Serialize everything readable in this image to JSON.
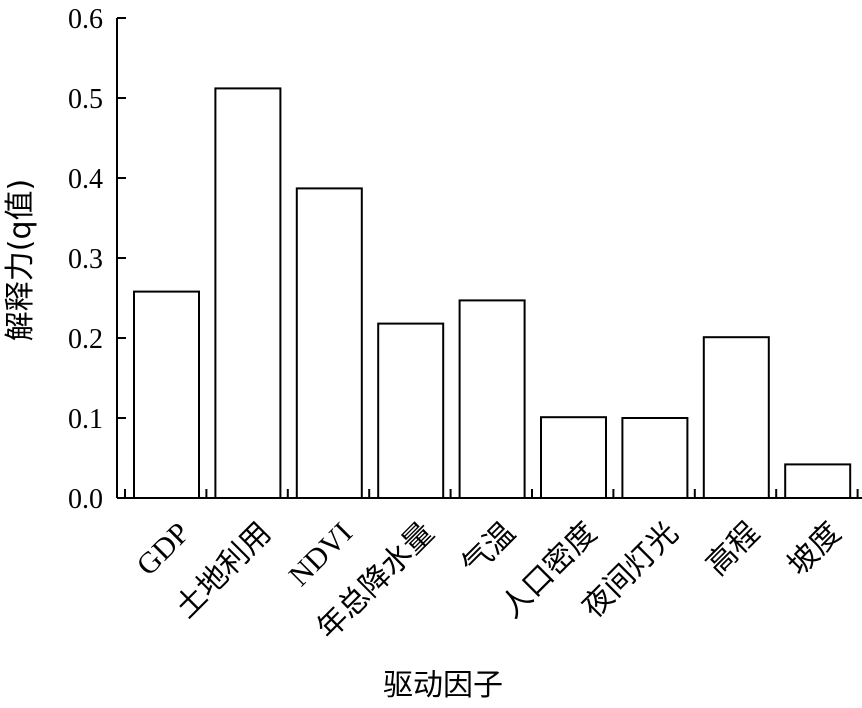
{
  "chart_data": {
    "type": "bar",
    "categories": [
      "GDP",
      "土地利用",
      "NDVI",
      "年总降水量",
      "气温",
      "人口密度",
      "夜间灯光",
      "高程",
      "坡度"
    ],
    "values": [
      0.258,
      0.512,
      0.387,
      0.218,
      0.247,
      0.101,
      0.1,
      0.201,
      0.042
    ],
    "xlabel": "驱动因子",
    "ylabel": "解释力(q值)",
    "ylim": [
      0,
      0.6
    ],
    "yticks": [
      "0.0",
      "0.1",
      "0.2",
      "0.3",
      "0.4",
      "0.5",
      "0.6"
    ],
    "grid": false,
    "bar_fill": "#ffffff",
    "bar_stroke": "#000000"
  }
}
